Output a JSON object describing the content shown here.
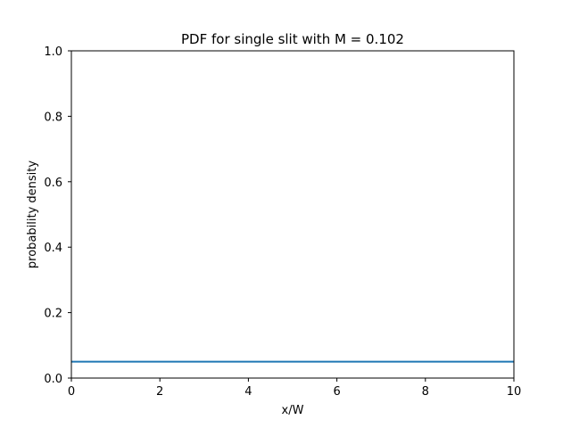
{
  "chart_data": {
    "type": "line",
    "title": "PDF for single slit  with M = 0.102",
    "xlabel": "x/W",
    "ylabel": "probability density",
    "xlim": [
      0,
      10
    ],
    "ylim": [
      0,
      1.0
    ],
    "xticks": [
      0,
      2,
      4,
      6,
      8,
      10
    ],
    "yticks": [
      0.0,
      0.2,
      0.4,
      0.6,
      0.8,
      1.0
    ],
    "xtick_labels": [
      "0",
      "2",
      "4",
      "6",
      "8",
      "10"
    ],
    "ytick_labels": [
      "0.0",
      "0.2",
      "0.4",
      "0.6",
      "0.8",
      "1.0"
    ],
    "grid": false,
    "series": [
      {
        "color": "#1f77b4",
        "x": [
          0,
          1,
          2,
          3,
          4,
          5,
          6,
          7,
          8,
          9,
          10
        ],
        "y": [
          0.05,
          0.05,
          0.05,
          0.05,
          0.05,
          0.05,
          0.05,
          0.05,
          0.05,
          0.05,
          0.05
        ]
      }
    ]
  }
}
